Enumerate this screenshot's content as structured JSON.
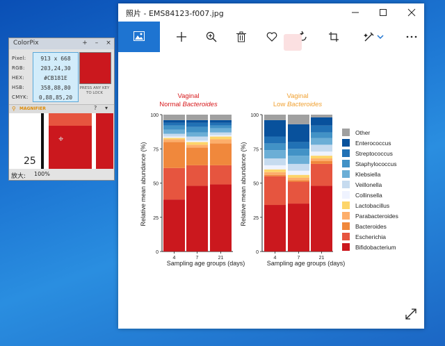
{
  "colorpix": {
    "title": "ColorPix",
    "controls": {
      "pin": "+",
      "minimize": "–",
      "close": "×"
    },
    "labels": {
      "pixel": "Pixel:",
      "rgb": "RGB:",
      "hex": "HEX:",
      "hsb": "HSB:",
      "cmyk": "CMYK:"
    },
    "values": {
      "pixel": "913 x 668",
      "rgb": "203,24,30",
      "hex": "#CB181E",
      "hsb": "358,88,80",
      "cmyk": "0,88,85,20"
    },
    "swatch_color": "#CB181E",
    "lock_hint": "PRESS ANY KEY TO LOCK",
    "magnifier_label": "MAGNIFIER",
    "help": "?",
    "zoom_label": "放大:",
    "zoom_value": "100%",
    "magnifier_number": "25"
  },
  "photos": {
    "title": "照片 - EMS84123-f007.jpg",
    "toolbar_icons": [
      "image-icon",
      "add-icon",
      "zoom-in-icon",
      "delete-icon",
      "heart-icon",
      "rotate-icon",
      "crop-icon",
      "edit-icon",
      "more-icon"
    ]
  },
  "figure": {
    "ylabel": "Relative mean abundance (%)",
    "xlabel": "Sampling age groups (days)",
    "yticks": [
      "0",
      "25",
      "50",
      "75",
      "100"
    ],
    "xticks": [
      "4",
      "7",
      "21"
    ],
    "panel1_title_1": "Vaginal",
    "panel1_title_2a": "Normal ",
    "panel1_title_2b": "Bacteroides",
    "panel2_title_1": "Vaginal",
    "panel2_title_2a": "Low ",
    "panel2_title_2b": "Bacteroides",
    "title_color_red": "#d7191c",
    "title_color_orange": "#f0a030",
    "legend": [
      {
        "name": "Other",
        "color": "#a0a0a0"
      },
      {
        "name": "Enterococcus",
        "color": "#08519c"
      },
      {
        "name": "Streptococcus",
        "color": "#2171b5"
      },
      {
        "name": "Staphylococcus",
        "color": "#4292c6"
      },
      {
        "name": "Klebsiella",
        "color": "#6baed6"
      },
      {
        "name": "Veillonella",
        "color": "#c6dbef"
      },
      {
        "name": "Collinsella",
        "color": "#eff3ff"
      },
      {
        "name": "Lactobacillus",
        "color": "#fdd56a"
      },
      {
        "name": "Parabacteroides",
        "color": "#fdae6b"
      },
      {
        "name": "Bacteroides",
        "color": "#f0883c"
      },
      {
        "name": "Escherichia",
        "color": "#e6553f"
      },
      {
        "name": "Bifidobacterium",
        "color": "#cb181e"
      }
    ]
  },
  "chart_data": [
    {
      "type": "bar",
      "stacked": true,
      "title": "Vaginal Normal Bacteroides",
      "xlabel": "Sampling age groups (days)",
      "ylabel": "Relative mean abundance (%)",
      "ylim": [
        0,
        100
      ],
      "categories": [
        "4",
        "7",
        "21"
      ],
      "series": [
        {
          "name": "Bifidobacterium",
          "values": [
            38,
            48,
            49
          ]
        },
        {
          "name": "Escherichia",
          "values": [
            23,
            15,
            14
          ]
        },
        {
          "name": "Bacteroides",
          "values": [
            19,
            13,
            16
          ]
        },
        {
          "name": "Parabacteroides",
          "values": [
            2,
            2,
            3
          ]
        },
        {
          "name": "Lactobacillus",
          "values": [
            1,
            2,
            2
          ]
        },
        {
          "name": "Collinsella",
          "values": [
            1,
            1,
            1
          ]
        },
        {
          "name": "Veillonella",
          "values": [
            2,
            3,
            2
          ]
        },
        {
          "name": "Klebsiella",
          "values": [
            3,
            3,
            3
          ]
        },
        {
          "name": "Staphylococcus",
          "values": [
            3,
            4,
            2
          ]
        },
        {
          "name": "Streptococcus",
          "values": [
            2,
            3,
            2
          ]
        },
        {
          "name": "Enterococcus",
          "values": [
            2,
            2,
            2
          ]
        },
        {
          "name": "Other",
          "values": [
            4,
            4,
            4
          ]
        }
      ]
    },
    {
      "type": "bar",
      "stacked": true,
      "title": "Vaginal Low Bacteroides",
      "xlabel": "Sampling age groups (days)",
      "ylabel": "Relative mean abundance (%)",
      "ylim": [
        0,
        100
      ],
      "categories": [
        "4",
        "7",
        "21"
      ],
      "series": [
        {
          "name": "Bifidobacterium",
          "values": [
            34,
            35,
            48
          ]
        },
        {
          "name": "Escherichia",
          "values": [
            21,
            16,
            16
          ]
        },
        {
          "name": "Bacteroides",
          "values": [
            1,
            1,
            2
          ]
        },
        {
          "name": "Parabacteroides",
          "values": [
            2,
            2,
            2
          ]
        },
        {
          "name": "Lactobacillus",
          "values": [
            2,
            2,
            2
          ]
        },
        {
          "name": "Collinsella",
          "values": [
            3,
            3,
            3
          ]
        },
        {
          "name": "Veillonella",
          "values": [
            5,
            5,
            5
          ]
        },
        {
          "name": "Klebsiella",
          "values": [
            6,
            6,
            5
          ]
        },
        {
          "name": "Staphylococcus",
          "values": [
            5,
            5,
            4
          ]
        },
        {
          "name": "Streptococcus",
          "values": [
            5,
            5,
            5
          ]
        },
        {
          "name": "Enterococcus",
          "values": [
            12,
            13,
            6
          ]
        },
        {
          "name": "Other",
          "values": [
            4,
            7,
            2
          ]
        }
      ]
    }
  ]
}
